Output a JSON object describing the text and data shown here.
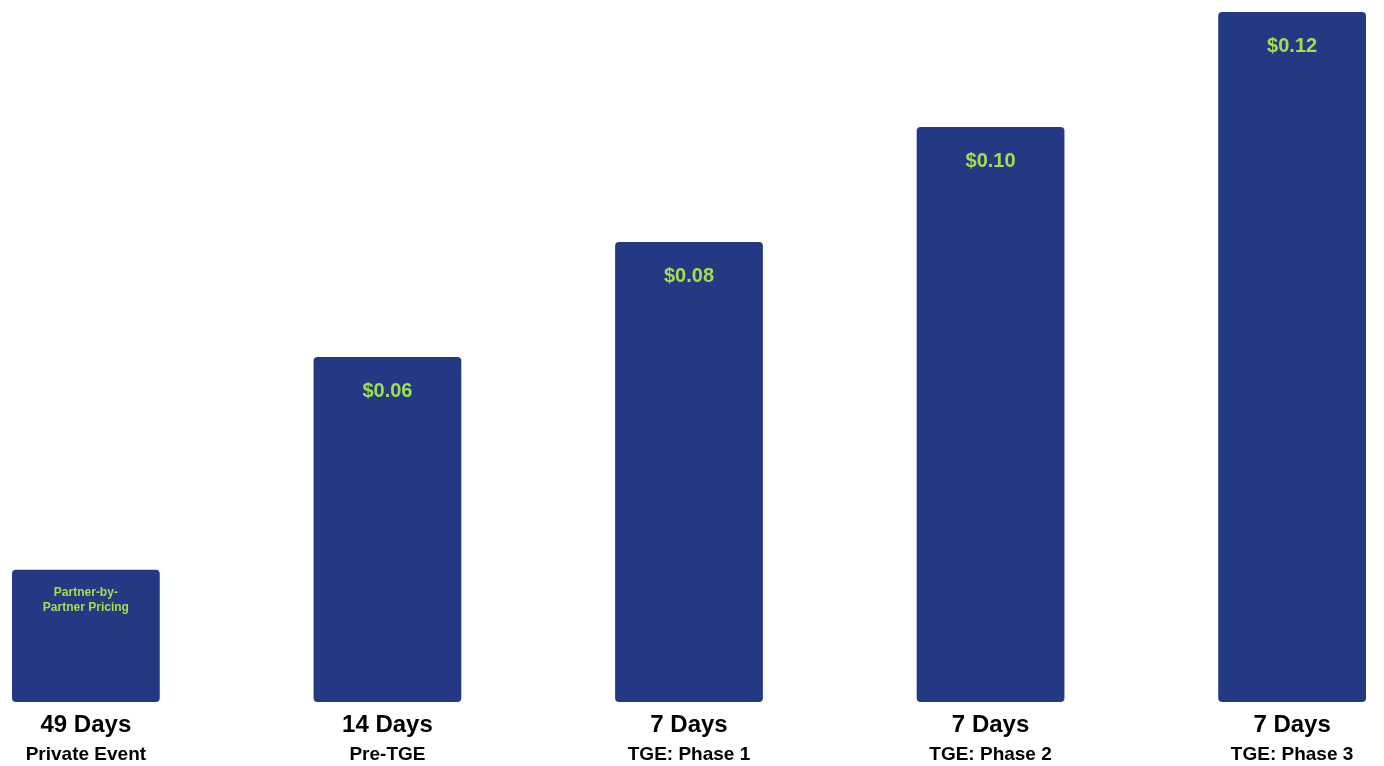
{
  "chart_data": {
    "type": "bar",
    "categories": [
      "49 Days\nPrivate Event",
      "14 Days\nPre-TGE",
      "7 Days\nTGE: Phase 1",
      "7 Days\nTGE: Phase 2",
      "7 Days\nTGE: Phase 3"
    ],
    "values": [
      0.023,
      0.06,
      0.08,
      0.1,
      0.12
    ],
    "color": "#243984",
    "value_labels": [
      "Partner-by-Partner Pricing",
      "$0.06",
      "$0.08",
      "$0.10",
      "$0.12"
    ]
  }
}
